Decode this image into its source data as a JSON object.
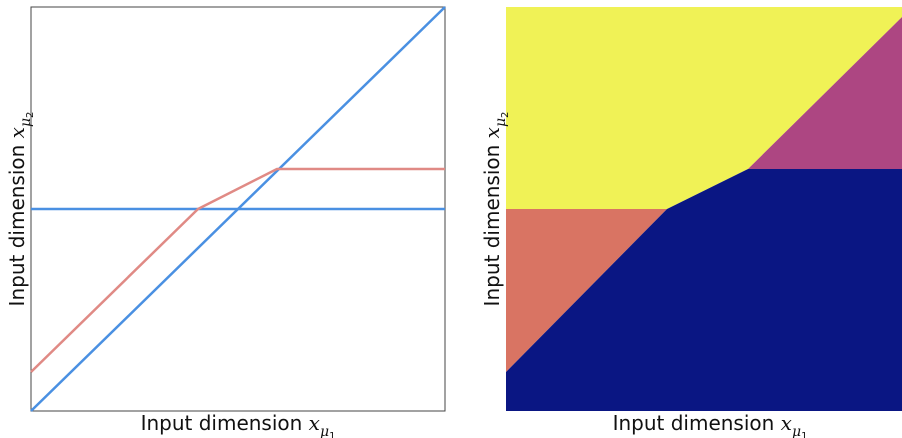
{
  "left_panel": {
    "xlabel": "Input dimension ",
    "xlabel_var": "x",
    "xlabel_sub": "μ",
    "xlabel_subsub": "1",
    "ylabel": "Input dimension ",
    "ylabel_var": "x",
    "ylabel_sub": "μ",
    "ylabel_subsub": "2",
    "line_colors": {
      "boundary": "#4a90e2",
      "piecewise": "#e08a85"
    }
  },
  "right_panel": {
    "xlabel": "Input dimension ",
    "xlabel_var": "x",
    "xlabel_sub": "μ",
    "xlabel_subsub": "1",
    "ylabel": "Input dimension ",
    "ylabel_var": "x",
    "ylabel_sub": "μ",
    "ylabel_subsub": "2",
    "region_colors": {
      "yellow": "#f0f256",
      "magenta": "#ad4682",
      "salmon": "#d97463",
      "navy": "#0a1683"
    }
  }
}
